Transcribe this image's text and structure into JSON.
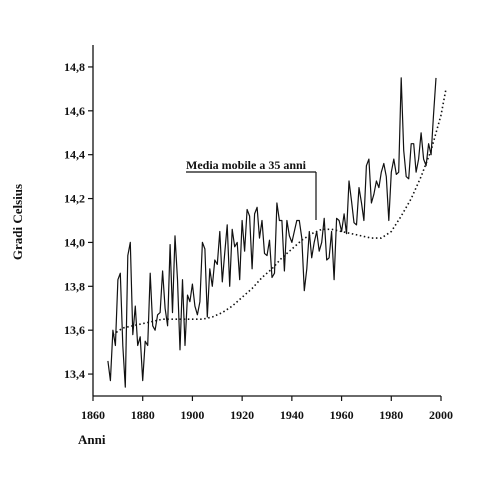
{
  "chart_data": {
    "type": "line",
    "xlabel": "Anni",
    "ylabel": "Gradi Celsius",
    "xlim": [
      1860,
      2000
    ],
    "ylim": [
      13.3,
      14.9
    ],
    "xticks": [
      1860,
      1880,
      1900,
      1920,
      1940,
      1960,
      1980,
      2000
    ],
    "xtick_labels": [
      "1860",
      "1880",
      "1900",
      "1920",
      "1940",
      "1960",
      "1980",
      "2000"
    ],
    "yticks": [
      13.4,
      13.6,
      13.8,
      14.0,
      14.2,
      14.4,
      14.6,
      14.8
    ],
    "ytick_labels": [
      "13,4",
      "13,6",
      "13,8",
      "14,0",
      "14,2",
      "14,4",
      "14,6",
      "14,8"
    ],
    "grid": false,
    "annotation": {
      "text": "Media mobile a 35 anni",
      "points_to": [
        1951,
        14.06
      ]
    },
    "series": [
      {
        "style": "solid",
        "x": [
          1866,
          1867,
          1868,
          1869,
          1870,
          1871,
          1872,
          1873,
          1874,
          1875,
          1876,
          1877,
          1878,
          1879,
          1880,
          1881,
          1882,
          1883,
          1884,
          1885,
          1886,
          1887,
          1888,
          1889,
          1890,
          1891,
          1892,
          1893,
          1894,
          1895,
          1896,
          1897,
          1898,
          1899,
          1900,
          1901,
          1902,
          1903,
          1904,
          1905,
          1906,
          1907,
          1908,
          1909,
          1910,
          1911,
          1912,
          1913,
          1914,
          1915,
          1916,
          1917,
          1918,
          1919,
          1920,
          1921,
          1922,
          1923,
          1924,
          1925,
          1926,
          1927,
          1928,
          1929,
          1930,
          1931,
          1932,
          1933,
          1934,
          1935,
          1936,
          1937,
          1938,
          1939,
          1940,
          1941,
          1942,
          1943,
          1944,
          1945,
          1946,
          1947,
          1948,
          1949,
          1950,
          1951,
          1952,
          1953,
          1954,
          1955,
          1956,
          1957,
          1958,
          1959,
          1960,
          1961,
          1962,
          1963,
          1964,
          1965,
          1966,
          1967,
          1968,
          1969,
          1970,
          1971,
          1972,
          1973,
          1974,
          1975,
          1976,
          1977,
          1978,
          1979,
          1980,
          1981,
          1982,
          1983,
          1984,
          1985,
          1986,
          1987,
          1988,
          1989,
          1990,
          1991,
          1992,
          1993,
          1994,
          1995,
          1996,
          1997,
          1998
        ],
        "y": [
          13.46,
          13.37,
          13.6,
          13.53,
          13.83,
          13.86,
          13.53,
          13.34,
          13.94,
          14.0,
          13.58,
          13.71,
          13.53,
          13.57,
          13.37,
          13.55,
          13.53,
          13.86,
          13.62,
          13.6,
          13.67,
          13.68,
          13.87,
          13.7,
          13.62,
          13.99,
          13.68,
          14.03,
          13.83,
          13.51,
          13.83,
          13.53,
          13.76,
          13.73,
          13.81,
          13.71,
          13.67,
          13.73,
          14.0,
          13.97,
          13.66,
          13.88,
          13.8,
          13.92,
          13.9,
          14.05,
          13.82,
          13.95,
          14.08,
          13.8,
          14.06,
          13.98,
          14.0,
          13.83,
          14.1,
          13.96,
          14.15,
          14.12,
          13.88,
          14.13,
          14.16,
          14.02,
          14.1,
          13.95,
          13.94,
          14.01,
          13.84,
          13.86,
          14.18,
          14.1,
          14.1,
          13.87,
          14.1,
          14.03,
          14.0,
          14.05,
          14.1,
          14.1,
          14.02,
          13.78,
          13.88,
          14.05,
          13.93,
          14.0,
          14.05,
          13.96,
          14.0,
          14.11,
          13.92,
          13.93,
          14.05,
          13.83,
          14.11,
          14.1,
          14.05,
          14.13,
          14.04,
          14.28,
          14.19,
          14.09,
          14.08,
          14.25,
          14.18,
          14.1,
          14.35,
          14.38,
          14.18,
          14.22,
          14.28,
          14.25,
          14.32,
          14.36,
          14.3,
          14.1,
          14.32,
          14.38,
          14.31,
          14.32,
          14.75,
          14.42,
          14.3,
          14.29,
          14.45,
          14.45,
          14.32,
          14.38,
          14.5,
          14.38,
          14.35,
          14.45,
          14.4,
          14.58,
          14.75
        ]
      },
      {
        "style": "dotted",
        "x": [
          1868,
          1872,
          1876,
          1880,
          1884,
          1888,
          1892,
          1896,
          1900,
          1904,
          1908,
          1912,
          1916,
          1920,
          1924,
          1928,
          1932,
          1936,
          1940,
          1944,
          1948,
          1952,
          1956,
          1960,
          1964,
          1968,
          1972,
          1976,
          1980,
          1984,
          1988,
          1992,
          1996,
          2000,
          2002
        ],
        "y": [
          13.58,
          13.61,
          13.62,
          13.63,
          13.64,
          13.65,
          13.65,
          13.65,
          13.65,
          13.65,
          13.66,
          13.68,
          13.71,
          13.75,
          13.79,
          13.84,
          13.88,
          13.93,
          13.97,
          14.01,
          14.04,
          14.06,
          14.06,
          14.05,
          14.04,
          14.03,
          14.02,
          14.02,
          14.05,
          14.12,
          14.2,
          14.3,
          14.42,
          14.58,
          14.7
        ]
      }
    ]
  }
}
